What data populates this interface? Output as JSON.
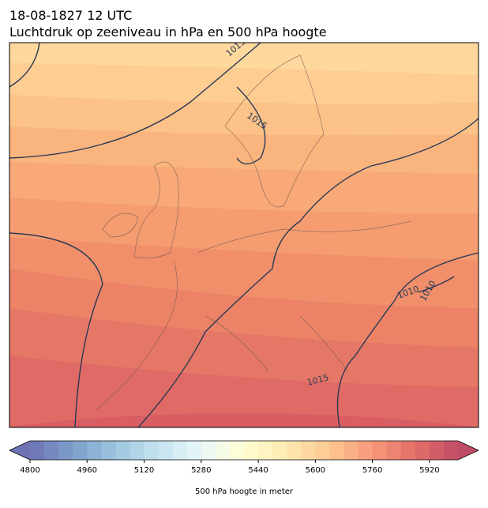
{
  "header": {
    "line1": "18-08-1827 12 UTC",
    "line2": "Luchtdruk op zeeniveau in hPa en 500 hPa hoogte"
  },
  "map": {
    "contour_labels": [
      "1015",
      "1015",
      "1010",
      "1010",
      "1015"
    ]
  },
  "colorbar": {
    "lim": [
      4800,
      6000
    ],
    "ticks": [
      4800,
      4960,
      5120,
      5280,
      5440,
      5600,
      5760,
      5920
    ],
    "label": "500 hPa hoogte in meter",
    "segments": 30,
    "alpha": 0.7,
    "colormap": [
      "#313695",
      "#4575b4",
      "#74add1",
      "#abd9e9",
      "#e0f3f8",
      "#ffffbf",
      "#fee090",
      "#fdae61",
      "#f46d43",
      "#d73027",
      "#a50026"
    ]
  }
}
